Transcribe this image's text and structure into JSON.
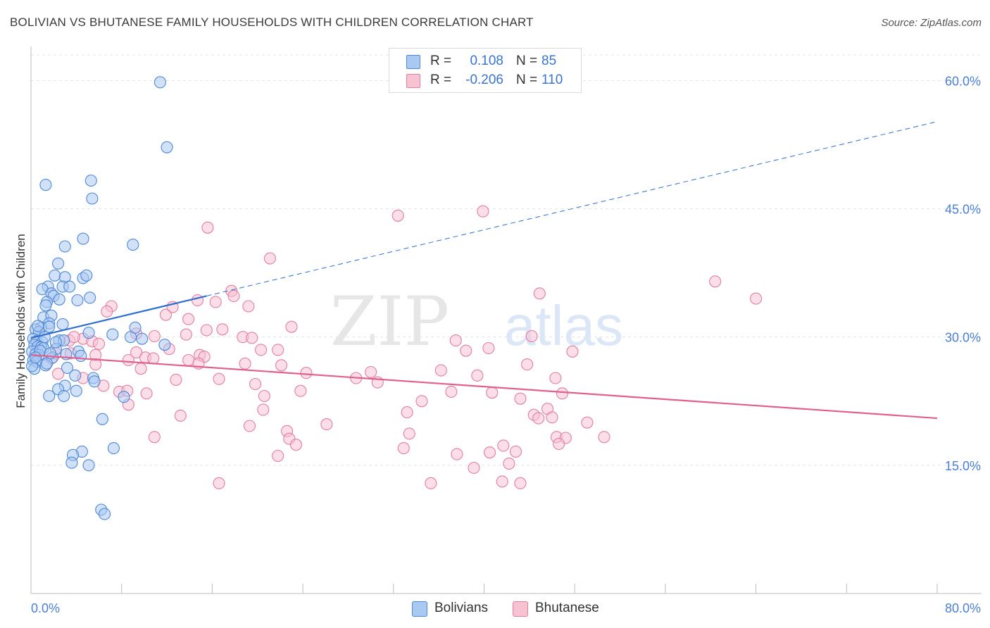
{
  "header": {
    "title": "BOLIVIAN VS BHUTANESE FAMILY HOUSEHOLDS WITH CHILDREN CORRELATION CHART",
    "source": "Source: ZipAtlas.com"
  },
  "watermark": {
    "part1": "ZIP",
    "part2": "atlas"
  },
  "legend_top": [
    {
      "r_label": "R =",
      "r_value": "0.108",
      "n_label": "N =",
      "n_value": "85"
    },
    {
      "r_label": "R =",
      "r_value": "-0.206",
      "n_label": "N =",
      "n_value": "110"
    }
  ],
  "legend_bottom": [
    {
      "label": "Bolivians"
    },
    {
      "label": "Bhutanese"
    }
  ],
  "colors": {
    "blue_fill": "#a9c8f2",
    "blue_stroke": "#4f88d6",
    "blue_line": "#2f6fcf",
    "pink_fill": "#f7c3d3",
    "pink_stroke": "#e27ea0",
    "pink_line": "#e0608e",
    "tick": "#4a7fd6",
    "grid": "#e4e4e4"
  },
  "chart_data": {
    "type": "scatter",
    "title": "BOLIVIAN VS BHUTANESE FAMILY HOUSEHOLDS WITH CHILDREN CORRELATION CHART",
    "xlabel": "",
    "ylabel": "Family Households with Children",
    "xlim": [
      0,
      80
    ],
    "ylim": [
      0,
      63
    ],
    "x_tick_labels": [
      "0.0%",
      "80.0%"
    ],
    "y_ticks": [
      15,
      30,
      45,
      60
    ],
    "y_tick_labels": [
      "15.0%",
      "30.0%",
      "45.0%",
      "60.0%"
    ],
    "series": [
      {
        "name": "Bolivians",
        "r": 0.108,
        "n": 85,
        "trend": {
          "x0": 0,
          "y0": 29.9,
          "x1": 80,
          "y1": 55.2,
          "solid_until_x": 15.5
        },
        "points": [
          [
            11.4,
            59.8
          ],
          [
            12.0,
            52.2
          ],
          [
            5.3,
            48.3
          ],
          [
            1.3,
            47.8
          ],
          [
            5.4,
            46.2
          ],
          [
            9.0,
            40.8
          ],
          [
            4.6,
            41.5
          ],
          [
            3.0,
            40.6
          ],
          [
            2.4,
            38.6
          ],
          [
            2.1,
            37.2
          ],
          [
            3.0,
            37.0
          ],
          [
            4.6,
            36.9
          ],
          [
            4.9,
            37.2
          ],
          [
            1.5,
            35.9
          ],
          [
            1.0,
            35.6
          ],
          [
            1.8,
            35.1
          ],
          [
            2.8,
            35.9
          ],
          [
            3.4,
            35.9
          ],
          [
            2.0,
            34.8
          ],
          [
            1.4,
            34.1
          ],
          [
            2.5,
            34.4
          ],
          [
            4.1,
            34.3
          ],
          [
            5.2,
            34.6
          ],
          [
            1.3,
            33.7
          ],
          [
            1.1,
            32.3
          ],
          [
            1.8,
            32.5
          ],
          [
            1.6,
            31.6
          ],
          [
            2.8,
            31.5
          ],
          [
            0.9,
            31.1
          ],
          [
            1.6,
            31.2
          ],
          [
            0.4,
            30.9
          ],
          [
            0.7,
            30.6
          ],
          [
            5.1,
            30.5
          ],
          [
            7.2,
            30.3
          ],
          [
            8.8,
            30.0
          ],
          [
            9.2,
            31.1
          ],
          [
            9.8,
            29.8
          ],
          [
            11.8,
            29.1
          ],
          [
            0.2,
            29.8
          ],
          [
            0.5,
            29.5
          ],
          [
            1.0,
            29.4
          ],
          [
            2.5,
            29.6
          ],
          [
            2.9,
            29.6
          ],
          [
            0.3,
            29.1
          ],
          [
            0.6,
            28.9
          ],
          [
            0.9,
            28.8
          ],
          [
            1.1,
            28.7
          ],
          [
            2.2,
            28.6
          ],
          [
            0.1,
            28.3
          ],
          [
            0.4,
            28.0
          ],
          [
            0.7,
            27.9
          ],
          [
            1.9,
            27.6
          ],
          [
            3.1,
            28.0
          ],
          [
            4.2,
            28.3
          ],
          [
            4.4,
            27.8
          ],
          [
            0.2,
            27.3
          ],
          [
            0.5,
            27.1
          ],
          [
            1.3,
            26.7
          ],
          [
            3.2,
            26.4
          ],
          [
            0.3,
            26.3
          ],
          [
            0.1,
            26.6
          ],
          [
            5.5,
            25.2
          ],
          [
            3.9,
            25.5
          ],
          [
            5.6,
            24.8
          ],
          [
            3.0,
            24.3
          ],
          [
            2.4,
            23.9
          ],
          [
            4.0,
            23.7
          ],
          [
            8.2,
            23.0
          ],
          [
            1.6,
            23.1
          ],
          [
            2.9,
            23.1
          ],
          [
            6.3,
            20.4
          ],
          [
            4.5,
            16.6
          ],
          [
            7.3,
            17.0
          ],
          [
            3.7,
            16.2
          ],
          [
            3.6,
            15.3
          ],
          [
            5.1,
            15.0
          ],
          [
            6.2,
            9.8
          ],
          [
            6.5,
            9.3
          ],
          [
            0.6,
            31.3
          ],
          [
            1.2,
            30.0
          ],
          [
            2.2,
            29.4
          ],
          [
            0.8,
            28.4
          ],
          [
            1.7,
            28.1
          ],
          [
            0.4,
            27.6
          ],
          [
            1.4,
            26.9
          ]
        ]
      },
      {
        "name": "Bhutanese",
        "r": -0.206,
        "n": 110,
        "trend": {
          "x0": 0,
          "y0": 27.9,
          "x1": 80,
          "y1": 20.5
        },
        "points": [
          [
            32.4,
            44.2
          ],
          [
            39.9,
            44.7
          ],
          [
            15.6,
            42.8
          ],
          [
            21.1,
            39.2
          ],
          [
            60.4,
            36.5
          ],
          [
            17.7,
            35.4
          ],
          [
            17.9,
            34.8
          ],
          [
            64.0,
            34.5
          ],
          [
            44.9,
            35.1
          ],
          [
            14.7,
            34.3
          ],
          [
            16.3,
            34.1
          ],
          [
            19.2,
            33.6
          ],
          [
            7.1,
            33.6
          ],
          [
            6.7,
            33.0
          ],
          [
            12.5,
            33.5
          ],
          [
            11.9,
            32.6
          ],
          [
            13.9,
            32.1
          ],
          [
            23.0,
            31.2
          ],
          [
            16.9,
            30.9
          ],
          [
            15.5,
            30.8
          ],
          [
            13.7,
            30.3
          ],
          [
            9.3,
            30.4
          ],
          [
            10.9,
            30.1
          ],
          [
            18.7,
            30.0
          ],
          [
            19.5,
            29.9
          ],
          [
            37.5,
            29.6
          ],
          [
            44.2,
            30.1
          ],
          [
            4.6,
            29.8
          ],
          [
            5.4,
            29.5
          ],
          [
            6.0,
            29.2
          ],
          [
            3.4,
            29.6
          ],
          [
            3.8,
            30.0
          ],
          [
            20.3,
            28.5
          ],
          [
            21.8,
            28.5
          ],
          [
            38.4,
            28.4
          ],
          [
            40.4,
            28.7
          ],
          [
            47.8,
            28.3
          ],
          [
            9.3,
            28.2
          ],
          [
            10.1,
            27.6
          ],
          [
            10.8,
            27.5
          ],
          [
            12.2,
            28.6
          ],
          [
            14.9,
            27.9
          ],
          [
            15.3,
            27.7
          ],
          [
            8.6,
            27.3
          ],
          [
            1.8,
            27.5
          ],
          [
            2.2,
            28.1
          ],
          [
            3.5,
            28.1
          ],
          [
            5.7,
            27.9
          ],
          [
            13.9,
            27.3
          ],
          [
            14.8,
            26.9
          ],
          [
            18.9,
            26.9
          ],
          [
            22.1,
            26.7
          ],
          [
            9.7,
            26.3
          ],
          [
            5.7,
            26.8
          ],
          [
            36.2,
            26.1
          ],
          [
            30.0,
            25.9
          ],
          [
            43.8,
            26.8
          ],
          [
            24.3,
            25.8
          ],
          [
            2.4,
            25.7
          ],
          [
            4.6,
            25.2
          ],
          [
            12.8,
            25.0
          ],
          [
            16.6,
            25.1
          ],
          [
            28.7,
            25.2
          ],
          [
            39.4,
            25.5
          ],
          [
            46.3,
            25.2
          ],
          [
            19.8,
            24.5
          ],
          [
            30.6,
            24.7
          ],
          [
            6.4,
            24.3
          ],
          [
            7.8,
            23.6
          ],
          [
            8.5,
            23.7
          ],
          [
            10.2,
            23.4
          ],
          [
            23.8,
            23.7
          ],
          [
            37.1,
            23.6
          ],
          [
            40.7,
            23.5
          ],
          [
            46.9,
            23.4
          ],
          [
            20.6,
            23.1
          ],
          [
            34.5,
            22.5
          ],
          [
            43.2,
            22.8
          ],
          [
            8.6,
            22.1
          ],
          [
            33.2,
            21.2
          ],
          [
            20.5,
            21.5
          ],
          [
            45.6,
            21.6
          ],
          [
            44.4,
            20.9
          ],
          [
            44.8,
            20.5
          ],
          [
            46.0,
            20.6
          ],
          [
            13.2,
            20.8
          ],
          [
            49.1,
            20.0
          ],
          [
            19.3,
            19.6
          ],
          [
            26.1,
            19.8
          ],
          [
            22.6,
            19.0
          ],
          [
            33.4,
            18.7
          ],
          [
            46.4,
            18.3
          ],
          [
            47.2,
            18.2
          ],
          [
            50.6,
            18.3
          ],
          [
            10.9,
            18.3
          ],
          [
            22.8,
            18.1
          ],
          [
            41.7,
            17.3
          ],
          [
            23.4,
            17.4
          ],
          [
            37.6,
            16.3
          ],
          [
            40.5,
            16.5
          ],
          [
            42.8,
            16.6
          ],
          [
            21.8,
            16.1
          ],
          [
            35.3,
            12.9
          ],
          [
            43.2,
            12.9
          ],
          [
            16.6,
            12.9
          ],
          [
            39.1,
            14.7
          ],
          [
            42.2,
            15.2
          ],
          [
            46.6,
            17.5
          ],
          [
            41.6,
            13.1
          ],
          [
            32.9,
            17.0
          ]
        ]
      }
    ]
  }
}
